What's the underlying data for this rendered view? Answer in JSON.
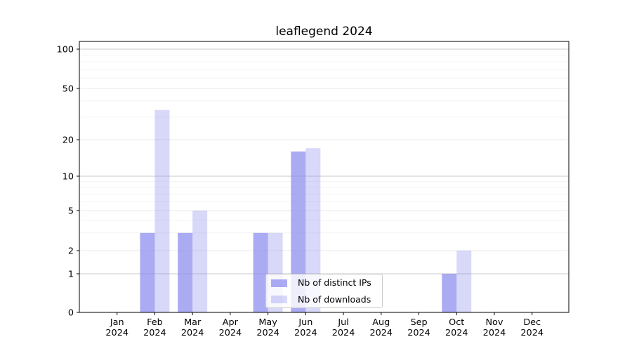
{
  "chart_data": {
    "type": "bar",
    "title": "leaflegend 2024",
    "x_categories": [
      "Jan",
      "Feb",
      "Mar",
      "Apr",
      "May",
      "Jun",
      "Jul",
      "Aug",
      "Sep",
      "Oct",
      "Nov",
      "Dec"
    ],
    "x_year": "2024",
    "y_ticks": [
      0,
      1,
      2,
      5,
      10,
      20,
      50,
      100
    ],
    "y_minor_gridlines": [
      3,
      4,
      6,
      7,
      8,
      9,
      30,
      40,
      60,
      70,
      80,
      90
    ],
    "ylim": [
      0,
      100
    ],
    "y_scale": "asinh (linear 0-1, log above 1)",
    "grid": true,
    "legend_position": "lower center inside plot",
    "series": [
      {
        "name": "Nb of distinct IPs",
        "color": "#8888ee",
        "opacity": 0.7,
        "values": [
          0,
          3,
          3,
          0,
          3,
          16,
          0,
          0,
          0,
          1,
          0,
          0
        ]
      },
      {
        "name": "Nb of downloads",
        "color": "#8888ee",
        "opacity": 0.33,
        "values": [
          0,
          34,
          5,
          0,
          3,
          17,
          0,
          0,
          0,
          2,
          0,
          0
        ]
      }
    ],
    "colors": {
      "spine": "#000000",
      "major_gridline": "#c8c8c8",
      "labeled_minor_gridline": "#eaeaea",
      "minor_gridline": "#f4f4f4"
    }
  }
}
